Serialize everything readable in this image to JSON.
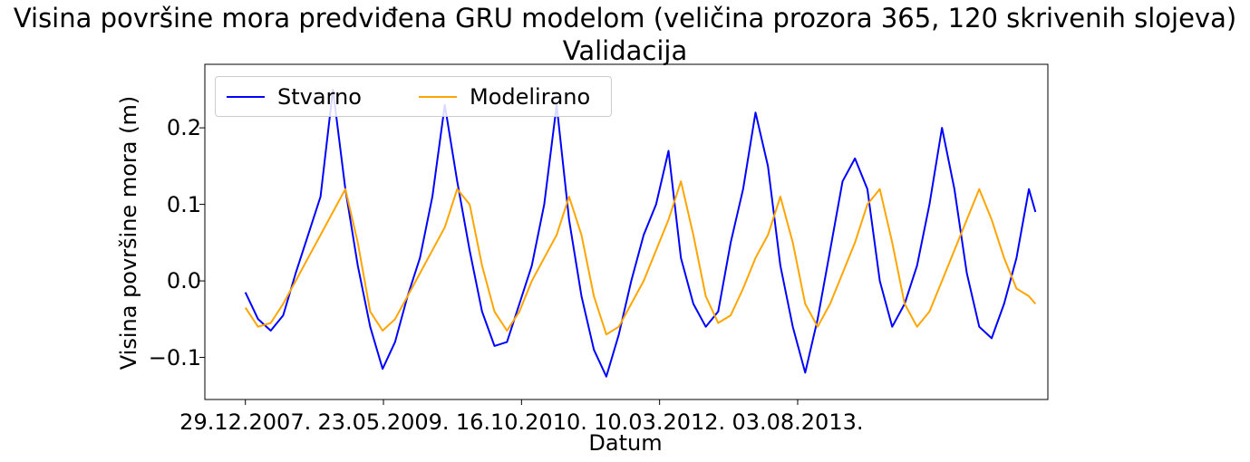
{
  "chart_data": {
    "type": "line",
    "title": "Visina površine mora predviđena GRU modelom (veličina prozora 365, 120 skrivenih slojeva)",
    "subtitle": "Validacija",
    "xlabel": "Datum",
    "ylabel": "Visina površine mora (m)",
    "x_ticks": [
      "29.12.2007.",
      "23.05.2009.",
      "16.10.2010.",
      "10.03.2012.",
      "03.08.2013."
    ],
    "y_ticks": [
      "−0.1",
      "0.0",
      "0.1",
      "0.2"
    ],
    "ylim": [
      -0.155,
      0.283
    ],
    "xlim": [
      "2007-08-01",
      "2016-02-15"
    ],
    "grid": false,
    "legend_position": "top-left",
    "x_start": "2007-12-29",
    "x_end": "2015-12-31",
    "series": [
      {
        "name": "Stvarno",
        "color": "#0000ff",
        "x": [
          "2007-12-29",
          "2008-02-14",
          "2008-04-01",
          "2008-05-17",
          "2008-07-02",
          "2008-08-17",
          "2008-10-02",
          "2008-11-17",
          "2009-01-02",
          "2009-02-17",
          "2009-04-04",
          "2009-05-20",
          "2009-07-05",
          "2009-08-20",
          "2009-10-05",
          "2009-11-20",
          "2010-01-05",
          "2010-02-20",
          "2010-04-07",
          "2010-05-23",
          "2010-07-08",
          "2010-08-23",
          "2010-10-08",
          "2010-11-23",
          "2011-01-08",
          "2011-02-23",
          "2011-04-10",
          "2011-05-26",
          "2011-07-11",
          "2011-08-26",
          "2011-10-11",
          "2011-11-26",
          "2012-01-11",
          "2012-02-26",
          "2012-04-12",
          "2012-05-28",
          "2012-07-13",
          "2012-08-28",
          "2012-10-13",
          "2012-11-28",
          "2013-01-13",
          "2013-02-28",
          "2013-04-15",
          "2013-05-31",
          "2013-07-16",
          "2013-08-31",
          "2013-10-16",
          "2013-12-01",
          "2014-01-16",
          "2014-03-03",
          "2014-04-18",
          "2014-06-03",
          "2014-07-19",
          "2014-09-03",
          "2014-10-19",
          "2014-12-04",
          "2015-01-19",
          "2015-03-06",
          "2015-04-21",
          "2015-06-06",
          "2015-07-22",
          "2015-09-06",
          "2015-10-22",
          "2015-12-07",
          "2015-12-31"
        ],
        "values": [
          -0.015,
          -0.05,
          -0.065,
          -0.045,
          0.01,
          0.06,
          0.11,
          0.25,
          0.12,
          0.02,
          -0.06,
          -0.115,
          -0.08,
          -0.02,
          0.03,
          0.11,
          0.23,
          0.13,
          0.04,
          -0.04,
          -0.085,
          -0.08,
          -0.03,
          0.02,
          0.1,
          0.23,
          0.08,
          -0.02,
          -0.09,
          -0.125,
          -0.07,
          0.0,
          0.06,
          0.1,
          0.17,
          0.03,
          -0.03,
          -0.06,
          -0.04,
          0.05,
          0.12,
          0.22,
          0.15,
          0.02,
          -0.06,
          -0.12,
          -0.05,
          0.04,
          0.13,
          0.16,
          0.12,
          0.0,
          -0.06,
          -0.03,
          0.02,
          0.1,
          0.2,
          0.12,
          0.01,
          -0.06,
          -0.075,
          -0.03,
          0.03,
          0.12,
          0.09
        ]
      },
      {
        "name": "Modelirano",
        "color": "#ffa500",
        "x": [
          "2007-12-29",
          "2008-02-14",
          "2008-04-01",
          "2008-05-17",
          "2008-07-02",
          "2008-08-17",
          "2008-10-02",
          "2008-11-17",
          "2009-01-02",
          "2009-02-17",
          "2009-04-04",
          "2009-05-20",
          "2009-07-05",
          "2009-08-20",
          "2009-10-05",
          "2009-11-20",
          "2010-01-05",
          "2010-02-20",
          "2010-04-07",
          "2010-05-23",
          "2010-07-08",
          "2010-08-23",
          "2010-10-08",
          "2010-11-23",
          "2011-01-08",
          "2011-02-23",
          "2011-04-10",
          "2011-05-26",
          "2011-07-11",
          "2011-08-26",
          "2011-10-11",
          "2011-11-26",
          "2012-01-11",
          "2012-02-26",
          "2012-04-12",
          "2012-05-28",
          "2012-07-13",
          "2012-08-28",
          "2012-10-13",
          "2012-11-28",
          "2013-01-13",
          "2013-02-28",
          "2013-04-15",
          "2013-05-31",
          "2013-07-16",
          "2013-08-31",
          "2013-10-16",
          "2013-12-01",
          "2014-01-16",
          "2014-03-03",
          "2014-04-18",
          "2014-06-03",
          "2014-07-19",
          "2014-09-03",
          "2014-10-19",
          "2014-12-04",
          "2015-01-19",
          "2015-03-06",
          "2015-04-21",
          "2015-06-06",
          "2015-07-22",
          "2015-09-06",
          "2015-10-22",
          "2015-12-07",
          "2015-12-31"
        ],
        "values": [
          -0.035,
          -0.06,
          -0.055,
          -0.03,
          0.0,
          0.03,
          0.06,
          0.09,
          0.12,
          0.05,
          -0.04,
          -0.065,
          -0.05,
          -0.02,
          0.01,
          0.04,
          0.07,
          0.12,
          0.1,
          0.02,
          -0.04,
          -0.065,
          -0.04,
          0.0,
          0.03,
          0.06,
          0.11,
          0.06,
          -0.02,
          -0.07,
          -0.06,
          -0.03,
          0.0,
          0.04,
          0.08,
          0.13,
          0.06,
          -0.02,
          -0.055,
          -0.045,
          -0.01,
          0.03,
          0.06,
          0.11,
          0.05,
          -0.03,
          -0.06,
          -0.03,
          0.01,
          0.05,
          0.1,
          0.12,
          0.05,
          -0.03,
          -0.06,
          -0.04,
          0.0,
          0.04,
          0.08,
          0.12,
          0.08,
          0.03,
          -0.01,
          -0.02,
          -0.03
        ]
      }
    ]
  }
}
